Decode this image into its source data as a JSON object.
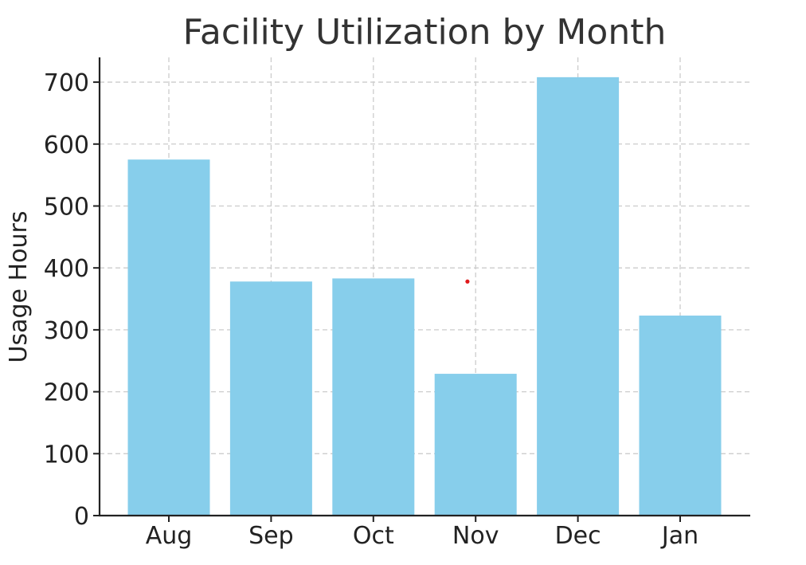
{
  "chart_data": {
    "type": "bar",
    "title": "Facility Utilization by Month",
    "xlabel": "",
    "ylabel": "Usage Hours",
    "categories": [
      "Aug",
      "Sep",
      "Oct",
      "Nov",
      "Dec",
      "Jan"
    ],
    "values": [
      575,
      378,
      383,
      229,
      708,
      323
    ],
    "ylim": [
      0,
      740
    ],
    "yticks": [
      0,
      100,
      200,
      300,
      400,
      500,
      600,
      700
    ],
    "grid": true,
    "bar_color": "#87CEEB",
    "marker": {
      "x": "Nov",
      "offset": -0.08,
      "y": 378,
      "color": "#e0191b"
    }
  }
}
